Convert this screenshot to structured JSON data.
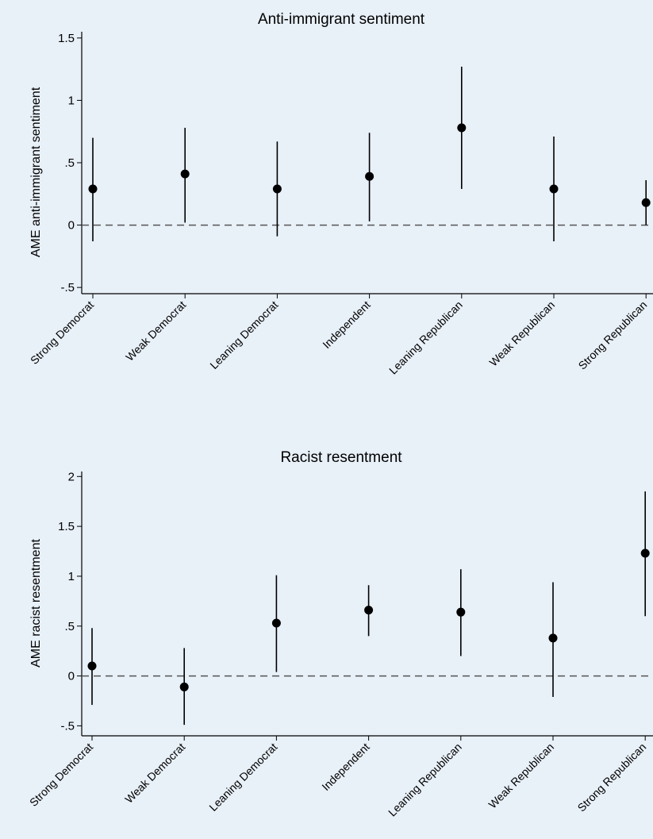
{
  "chart_data": [
    {
      "type": "scatter",
      "title": "Anti-immigrant sentiment",
      "xlabel": "",
      "ylabel": "AME anti-immigrant sentiment",
      "categories": [
        "Strong Democrat",
        "Weak Democrat",
        "Leaning Democrat",
        "Independent",
        "Leaning Republican",
        "Weak Republican",
        "Strong Republican"
      ],
      "values": [
        0.29,
        0.41,
        0.29,
        0.39,
        0.78,
        0.29,
        0.18
      ],
      "ci_low": [
        -0.13,
        0.02,
        -0.09,
        0.03,
        0.29,
        -0.13,
        0.0
      ],
      "ci_high": [
        0.7,
        0.78,
        0.67,
        0.74,
        1.27,
        0.71,
        0.36
      ],
      "ylim": [
        -0.55,
        1.55
      ],
      "yticks": [
        -0.5,
        0,
        0.5,
        1,
        1.5
      ],
      "ytick_labels": [
        "-.5",
        "0",
        ".5",
        "1",
        "1.5"
      ],
      "reference_line": 0,
      "grid": false
    },
    {
      "type": "scatter",
      "title": "Racist resentment",
      "xlabel": "",
      "ylabel": "AME racist resentment",
      "categories": [
        "Strong Democrat",
        "Weak Democrat",
        "Leaning Democrat",
        "Independent",
        "Leaning Republican",
        "Weak Republican",
        "Strong Republican"
      ],
      "values": [
        0.1,
        -0.11,
        0.53,
        0.66,
        0.64,
        0.38,
        1.23
      ],
      "ci_low": [
        -0.29,
        -0.49,
        0.04,
        0.4,
        0.2,
        -0.21,
        0.6
      ],
      "ci_high": [
        0.48,
        0.28,
        1.01,
        0.91,
        1.07,
        0.94,
        1.85
      ],
      "ylim": [
        -0.6,
        2.05
      ],
      "yticks": [
        -0.5,
        0,
        0.5,
        1,
        1.5,
        2
      ],
      "ytick_labels": [
        "-.5",
        "0",
        ".5",
        "1",
        "1.5",
        "2"
      ],
      "reference_line": 0,
      "grid": false
    }
  ],
  "colors": {
    "background": "#e8f0f8",
    "marks": "#000000",
    "reference_line": "#555555"
  }
}
